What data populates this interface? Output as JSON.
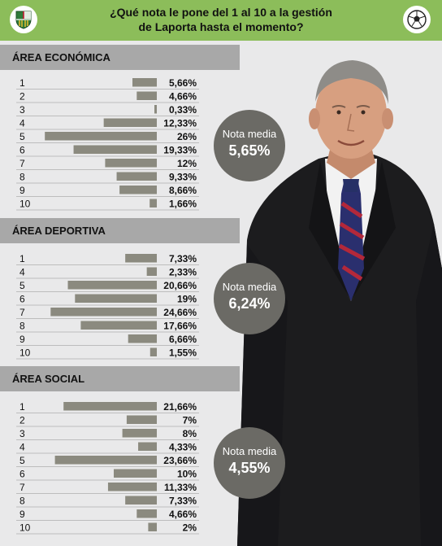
{
  "header": {
    "title_line1": "¿Qué nota le pone del 1 al 10 a la gestión",
    "title_line2": "de Laporta hasta el momento?",
    "left_icon": "fc-barcelona-crest-icon",
    "right_icon": "soccer-ball-icon"
  },
  "colors": {
    "header_bg": "#8cbd5a",
    "section_band": "#a8a8a8",
    "bar": "#8b8a7f",
    "circle": "#6b6a65",
    "background": "#e9e9ea"
  },
  "chart_data": [
    {
      "type": "bar",
      "orientation": "horizontal",
      "title": "ÁREA ECONÓMICA",
      "categories": [
        "1",
        "2",
        "3",
        "4",
        "5",
        "6",
        "7",
        "8",
        "9",
        "10"
      ],
      "values": [
        5.66,
        4.66,
        0.33,
        12.33,
        26,
        19.33,
        12,
        9.33,
        8.66,
        1.66
      ],
      "value_labels": [
        "5,66%",
        "4,66%",
        "0,33%",
        "12,33%",
        "26%",
        "19,33%",
        "12%",
        "9,33%",
        "8,66%",
        "1,66%"
      ],
      "average_label": "Nota media",
      "average_value": "5,65%"
    },
    {
      "type": "bar",
      "orientation": "horizontal",
      "title": "ÁREA DEPORTIVA",
      "categories": [
        "1",
        "4",
        "5",
        "6",
        "7",
        "8",
        "9",
        "10"
      ],
      "values": [
        7.33,
        2.33,
        20.66,
        19,
        24.66,
        17.66,
        6.66,
        1.55
      ],
      "value_labels": [
        "7,33%",
        "2,33%",
        "20,66%",
        "19%",
        "24,66%",
        "17,66%",
        "6,66%",
        "1,55%"
      ],
      "average_label": "Nota media",
      "average_value": "6,24%"
    },
    {
      "type": "bar",
      "orientation": "horizontal",
      "title": "ÁREA SOCIAL",
      "categories": [
        "1",
        "2",
        "3",
        "4",
        "5",
        "6",
        "7",
        "8",
        "9",
        "10"
      ],
      "values": [
        21.66,
        7,
        8,
        4.33,
        23.66,
        10,
        11.33,
        7.33,
        4.66,
        2
      ],
      "value_labels": [
        "21,66%",
        "7%",
        "8%",
        "4,33%",
        "23,66%",
        "10%",
        "11,33%",
        "7,33%",
        "4,66%",
        "2%"
      ],
      "average_label": "Nota media",
      "average_value": "4,55%"
    }
  ]
}
